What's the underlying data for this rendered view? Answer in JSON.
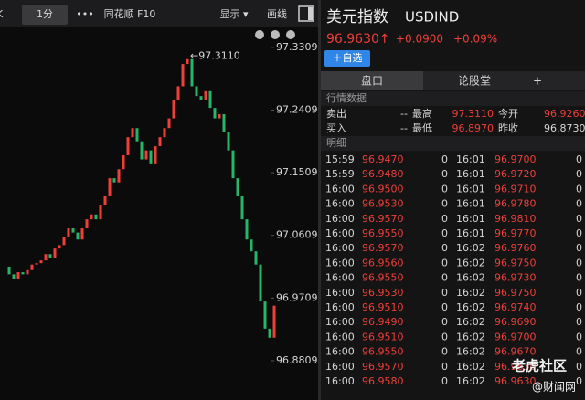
{
  "toolbar": {
    "edge": "K",
    "interval": "1分",
    "more": "•••",
    "f10": "同花顺 F10",
    "display": "显示 ▾",
    "draw": "画线"
  },
  "chart_data": {
    "type": "line",
    "annotation": "←97.3110",
    "values": [
      97.016,
      97.005,
      96.999,
      97.008,
      97.005,
      97.011,
      97.019,
      97.021,
      97.025,
      97.034,
      97.029,
      97.042,
      97.047,
      97.058,
      97.071,
      97.065,
      97.055,
      97.071,
      97.084,
      97.091,
      97.084,
      97.104,
      97.117,
      97.143,
      97.137,
      97.156,
      97.176,
      97.202,
      97.215,
      97.196,
      97.17,
      97.183,
      97.163,
      97.189,
      97.202,
      97.215,
      97.229,
      97.255,
      97.275,
      97.307,
      97.314,
      97.275,
      97.261,
      97.255,
      97.268,
      97.244,
      97.229,
      97.235,
      97.209,
      97.183,
      97.143,
      97.117,
      97.084,
      97.055,
      97.038,
      97.019,
      96.966,
      96.927,
      96.914,
      96.96
    ],
    "up_color": "#ee3f38",
    "down_color": "#27b56a",
    "ylim": [
      96.835,
      97.353
    ],
    "yticks": [
      97.3309,
      97.2409,
      97.1509,
      97.0609,
      96.9709,
      96.8809
    ]
  },
  "quote": {
    "name": "美元指数",
    "code": "USDIND",
    "price": "96.9630↑",
    "change": "+0.0900",
    "change_pct": "+0.09%",
    "watch_button": "＋自选"
  },
  "tabs": [
    "盘口",
    "论股堂",
    "+"
  ],
  "market": {
    "title": "行情数据",
    "rows": [
      [
        "卖出",
        "--",
        "最高",
        "97.3110",
        "今开",
        "96.9260"
      ],
      [
        "买入",
        "--",
        "最低",
        "96.8970",
        "昨收",
        "96.8730"
      ]
    ]
  },
  "trades": {
    "title": "明细",
    "rows": [
      [
        "15:59",
        "96.9470",
        "0",
        "16:01",
        "96.9700",
        "0"
      ],
      [
        "15:59",
        "96.9480",
        "0",
        "16:01",
        "96.9720",
        "0"
      ],
      [
        "16:00",
        "96.9500",
        "0",
        "16:01",
        "96.9710",
        "0"
      ],
      [
        "16:00",
        "96.9530",
        "0",
        "16:01",
        "96.9780",
        "0"
      ],
      [
        "16:00",
        "96.9570",
        "0",
        "16:01",
        "96.9810",
        "0"
      ],
      [
        "16:00",
        "96.9550",
        "0",
        "16:01",
        "96.9770",
        "0"
      ],
      [
        "16:00",
        "96.9570",
        "0",
        "16:02",
        "96.9760",
        "0"
      ],
      [
        "16:00",
        "96.9560",
        "0",
        "16:02",
        "96.9750",
        "0"
      ],
      [
        "16:00",
        "96.9550",
        "0",
        "16:02",
        "96.9730",
        "0"
      ],
      [
        "16:00",
        "96.9530",
        "0",
        "16:02",
        "96.9750",
        "0"
      ],
      [
        "16:00",
        "96.9510",
        "0",
        "16:02",
        "96.9740",
        "0"
      ],
      [
        "16:00",
        "96.9490",
        "0",
        "16:02",
        "96.9690",
        "0"
      ],
      [
        "16:00",
        "96.9510",
        "0",
        "16:02",
        "96.9700",
        "0"
      ],
      [
        "16:00",
        "96.9550",
        "0",
        "16:02",
        "96.9670",
        "0"
      ],
      [
        "16:00",
        "96.9570",
        "0",
        "16:02",
        "96.9630",
        "0"
      ],
      [
        "16:00",
        "96.9580",
        "0",
        "16:02",
        "96.9630",
        "0"
      ]
    ]
  },
  "watermark": [
    "老虎社区",
    "@财闻网"
  ]
}
